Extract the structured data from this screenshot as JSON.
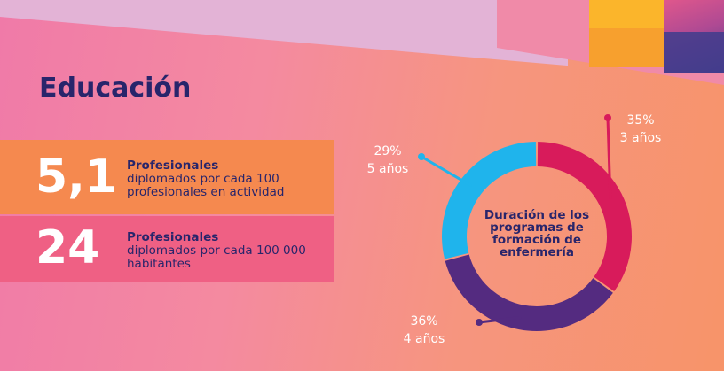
{
  "title": "Educación",
  "stats": [
    {
      "number": "5,1",
      "label": "Profesionales",
      "desc": "diplomados por cada 100 profesionales en actividad"
    },
    {
      "number": "24",
      "label": "Profesionales",
      "desc": "diplomados por cada 100 000 habitantes"
    }
  ],
  "chart_data": {
    "type": "pie",
    "title": "Duración de los programas de formación de enfermería",
    "slices": [
      {
        "pct_label": "35%",
        "duration": "3 años",
        "value": 35,
        "color": "#d81b5b"
      },
      {
        "pct_label": "36%",
        "duration": "4 años",
        "value": 36,
        "color": "#542b80"
      },
      {
        "pct_label": "29%",
        "duration": "5 años",
        "value": 29,
        "color": "#1fb4ec"
      }
    ],
    "leader_color": "#d81b5b",
    "leader_colors": [
      "#d81b5b",
      "#542b80",
      "#1fb4ec"
    ]
  }
}
